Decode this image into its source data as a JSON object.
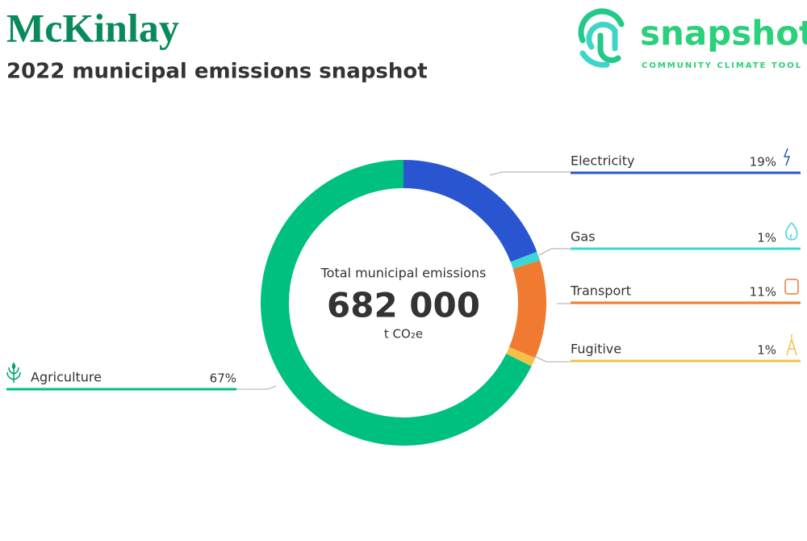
{
  "chart_data": {
    "type": "donut",
    "title": "McKinlay",
    "subtitle": "2022 municipal emissions snapshot",
    "logo": {
      "name": "snapshot",
      "tagline": "COMMUNITY CLIMATE TOOL"
    },
    "center": {
      "label": "Total municipal emissions",
      "value": 682000,
      "value_label": "682 000",
      "unit": "t CO₂e"
    },
    "categories": [
      "Electricity",
      "Gas",
      "Transport",
      "Fugitive",
      "Agriculture"
    ],
    "values": [
      19,
      1,
      11,
      1,
      67
    ],
    "value_labels": [
      "19%",
      "1%",
      "11%",
      "1%",
      "67%"
    ],
    "colors": [
      "#2a55d0",
      "#3dd6d6",
      "#f07a30",
      "#f5c04a",
      "#00c080"
    ]
  }
}
